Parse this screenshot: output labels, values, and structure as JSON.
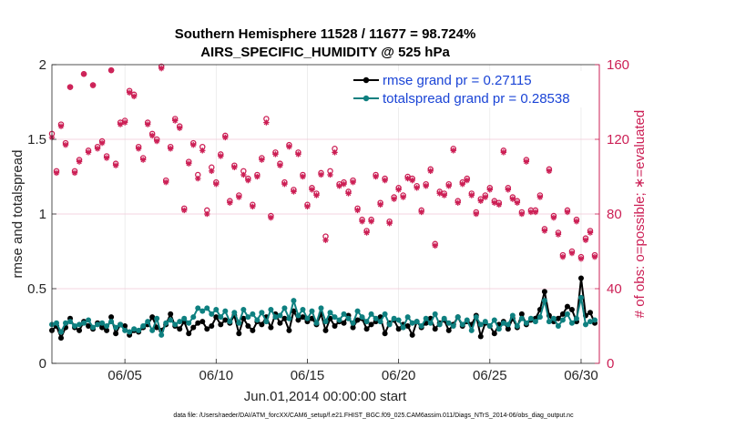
{
  "chart_data": {
    "type": "line",
    "title": "Southern Hemisphere 11528 / 11677 = 98.724%",
    "subtitle": "AIRS_SPECIFIC_HUMIDITY @ 525 hPa",
    "xlabel": "Jun.01,2014 00:00:00 start",
    "ylabel": "rmse and totalspread",
    "ylabel_right": "# of obs: o=possible; ∗=evaluated",
    "xlim": [
      1,
      31
    ],
    "ylim": [
      0,
      2
    ],
    "ylim_right": [
      0,
      160
    ],
    "x_ticks": [
      5,
      10,
      15,
      20,
      25,
      30
    ],
    "x_tick_labels": [
      "06/05",
      "06/10",
      "06/15",
      "06/20",
      "06/25",
      "06/30"
    ],
    "y_ticks": [
      0,
      0.5,
      1,
      1.5,
      2
    ],
    "y_tick_labels": [
      "0",
      "0.5",
      "1",
      "1.5",
      "2"
    ],
    "y_right_ticks": [
      0,
      40,
      80,
      120,
      160
    ],
    "y_right_tick_labels": [
      "0",
      "40",
      "80",
      "120",
      "160"
    ],
    "grid": true,
    "legend_position": "top-right",
    "legend": [
      "rmse grand pr = 0.27115",
      "totalspread grand pr = 0.28538"
    ],
    "colors": {
      "rmse": "#000000",
      "totalspread": "#0e8080",
      "obs": "#cc1f55",
      "legend_text": "#1a44d6"
    },
    "series": [
      {
        "name": "rmse",
        "x": [
          1.0,
          1.25,
          1.5,
          1.75,
          2.0,
          2.25,
          2.5,
          2.75,
          3.0,
          3.25,
          3.5,
          3.75,
          4.0,
          4.25,
          4.5,
          4.75,
          5.0,
          5.25,
          5.5,
          5.75,
          6.0,
          6.25,
          6.5,
          6.75,
          7.0,
          7.25,
          7.5,
          7.75,
          8.0,
          8.25,
          8.5,
          8.75,
          9.0,
          9.25,
          9.5,
          9.75,
          10.0,
          10.25,
          10.5,
          10.75,
          11.0,
          11.25,
          11.5,
          11.75,
          12.0,
          12.25,
          12.5,
          12.75,
          13.0,
          13.25,
          13.5,
          13.75,
          14.0,
          14.25,
          14.5,
          14.75,
          15.0,
          15.25,
          15.5,
          15.75,
          16.0,
          16.25,
          16.5,
          16.75,
          17.0,
          17.25,
          17.5,
          17.75,
          18.0,
          18.25,
          18.5,
          18.75,
          19.0,
          19.25,
          19.5,
          19.75,
          20.0,
          20.25,
          20.5,
          20.75,
          21.0,
          21.25,
          21.5,
          21.75,
          22.0,
          22.25,
          22.5,
          22.75,
          23.0,
          23.25,
          23.5,
          23.75,
          24.0,
          24.25,
          24.5,
          24.75,
          25.0,
          25.25,
          25.5,
          25.75,
          26.0,
          26.25,
          26.5,
          26.75,
          27.0,
          27.25,
          27.5,
          27.75,
          28.0,
          28.25,
          28.5,
          28.75,
          29.0,
          29.25,
          29.5,
          29.75,
          30.0,
          30.25,
          30.5,
          30.75
        ],
        "values": [
          0.22,
          0.25,
          0.17,
          0.24,
          0.3,
          0.24,
          0.22,
          0.28,
          0.25,
          0.23,
          0.27,
          0.24,
          0.22,
          0.31,
          0.2,
          0.26,
          0.25,
          0.19,
          0.22,
          0.21,
          0.24,
          0.26,
          0.31,
          0.24,
          0.22,
          0.26,
          0.33,
          0.25,
          0.23,
          0.28,
          0.2,
          0.24,
          0.27,
          0.28,
          0.23,
          0.25,
          0.31,
          0.26,
          0.29,
          0.27,
          0.32,
          0.2,
          0.3,
          0.25,
          0.22,
          0.28,
          0.26,
          0.31,
          0.24,
          0.33,
          0.27,
          0.3,
          0.22,
          0.35,
          0.29,
          0.31,
          0.28,
          0.3,
          0.26,
          0.33,
          0.22,
          0.3,
          0.25,
          0.28,
          0.27,
          0.32,
          0.24,
          0.29,
          0.3,
          0.23,
          0.26,
          0.28,
          0.31,
          0.2,
          0.27,
          0.29,
          0.23,
          0.26,
          0.25,
          0.19,
          0.28,
          0.24,
          0.27,
          0.3,
          0.23,
          0.27,
          0.29,
          0.22,
          0.26,
          0.31,
          0.25,
          0.28,
          0.26,
          0.32,
          0.18,
          0.27,
          0.25,
          0.2,
          0.26,
          0.28,
          0.23,
          0.3,
          0.24,
          0.33,
          0.26,
          0.29,
          0.3,
          0.36,
          0.48,
          0.32,
          0.28,
          0.3,
          0.33,
          0.38,
          0.36,
          0.28,
          0.57,
          0.32,
          0.34,
          0.27
        ]
      },
      {
        "name": "totalspread",
        "x": [
          1.0,
          1.25,
          1.5,
          1.75,
          2.0,
          2.25,
          2.5,
          2.75,
          3.0,
          3.25,
          3.5,
          3.75,
          4.0,
          4.25,
          4.5,
          4.75,
          5.0,
          5.25,
          5.5,
          5.75,
          6.0,
          6.25,
          6.5,
          6.75,
          7.0,
          7.25,
          7.5,
          7.75,
          8.0,
          8.25,
          8.5,
          8.75,
          9.0,
          9.25,
          9.5,
          9.75,
          10.0,
          10.25,
          10.5,
          10.75,
          11.0,
          11.25,
          11.5,
          11.75,
          12.0,
          12.25,
          12.5,
          12.75,
          13.0,
          13.25,
          13.5,
          13.75,
          14.0,
          14.25,
          14.5,
          14.75,
          15.0,
          15.25,
          15.5,
          15.75,
          16.0,
          16.25,
          16.5,
          16.75,
          17.0,
          17.25,
          17.5,
          17.75,
          18.0,
          18.25,
          18.5,
          18.75,
          19.0,
          19.25,
          19.5,
          19.75,
          20.0,
          20.25,
          20.5,
          20.75,
          21.0,
          21.25,
          21.5,
          21.75,
          22.0,
          22.25,
          22.5,
          22.75,
          23.0,
          23.25,
          23.5,
          23.75,
          24.0,
          24.25,
          24.5,
          24.75,
          25.0,
          25.25,
          25.5,
          25.75,
          26.0,
          26.25,
          26.5,
          26.75,
          27.0,
          27.25,
          27.5,
          27.75,
          28.0,
          28.25,
          28.5,
          28.75,
          29.0,
          29.25,
          29.5,
          29.75,
          30.0,
          30.25,
          30.5,
          30.75
        ],
        "values": [
          0.26,
          0.27,
          0.21,
          0.27,
          0.28,
          0.25,
          0.26,
          0.27,
          0.29,
          0.24,
          0.26,
          0.27,
          0.25,
          0.28,
          0.24,
          0.26,
          0.22,
          0.21,
          0.23,
          0.22,
          0.25,
          0.28,
          0.22,
          0.3,
          0.19,
          0.27,
          0.29,
          0.26,
          0.28,
          0.3,
          0.27,
          0.31,
          0.37,
          0.35,
          0.37,
          0.33,
          0.36,
          0.31,
          0.35,
          0.28,
          0.34,
          0.27,
          0.36,
          0.31,
          0.33,
          0.29,
          0.34,
          0.28,
          0.36,
          0.31,
          0.32,
          0.37,
          0.3,
          0.42,
          0.32,
          0.36,
          0.3,
          0.35,
          0.27,
          0.37,
          0.28,
          0.34,
          0.31,
          0.29,
          0.33,
          0.3,
          0.27,
          0.35,
          0.31,
          0.28,
          0.33,
          0.3,
          0.28,
          0.33,
          0.26,
          0.3,
          0.29,
          0.24,
          0.31,
          0.27,
          0.28,
          0.25,
          0.3,
          0.27,
          0.33,
          0.26,
          0.3,
          0.27,
          0.25,
          0.31,
          0.26,
          0.29,
          0.22,
          0.31,
          0.26,
          0.28,
          0.25,
          0.29,
          0.23,
          0.27,
          0.26,
          0.32,
          0.25,
          0.3,
          0.27,
          0.3,
          0.28,
          0.31,
          0.42,
          0.28,
          0.3,
          0.25,
          0.29,
          0.33,
          0.27,
          0.3,
          0.44,
          0.26,
          0.28,
          0.29
        ]
      },
      {
        "name": "obs_possible",
        "axis": "right",
        "marker": "o",
        "x": [
          1.0,
          1.25,
          1.5,
          1.75,
          2.0,
          2.25,
          2.5,
          2.75,
          3.0,
          3.25,
          3.5,
          3.75,
          4.0,
          4.25,
          4.5,
          4.75,
          5.0,
          5.25,
          5.5,
          5.75,
          6.0,
          6.25,
          6.5,
          6.75,
          7.0,
          7.25,
          7.5,
          7.75,
          8.0,
          8.25,
          8.5,
          8.75,
          9.0,
          9.25,
          9.5,
          9.75,
          10.0,
          10.25,
          10.5,
          10.75,
          11.0,
          11.25,
          11.5,
          11.75,
          12.0,
          12.25,
          12.5,
          12.75,
          13.0,
          13.25,
          13.5,
          13.75,
          14.0,
          14.25,
          14.5,
          14.75,
          15.0,
          15.25,
          15.5,
          15.75,
          16.0,
          16.25,
          16.5,
          16.75,
          17.0,
          17.25,
          17.5,
          17.75,
          18.0,
          18.25,
          18.5,
          18.75,
          19.0,
          19.25,
          19.5,
          19.75,
          20.0,
          20.25,
          20.5,
          20.75,
          21.0,
          21.25,
          21.5,
          21.75,
          22.0,
          22.25,
          22.5,
          22.75,
          23.0,
          23.25,
          23.5,
          23.75,
          24.0,
          24.25,
          24.5,
          24.75,
          25.0,
          25.25,
          25.5,
          25.75,
          26.0,
          26.25,
          26.5,
          26.75,
          27.0,
          27.25,
          27.5,
          27.75,
          28.0,
          28.25,
          28.5,
          28.75,
          29.0,
          29.25,
          29.5,
          29.75,
          30.0,
          30.25,
          30.5,
          30.75
        ],
        "values": [
          123,
          103,
          128,
          118,
          148,
          103,
          109,
          155,
          114,
          149,
          116,
          119,
          111,
          157,
          107,
          129,
          130,
          146,
          144,
          116,
          110,
          129,
          123,
          120,
          159,
          98,
          116,
          131,
          127,
          83,
          108,
          118,
          101,
          116,
          82,
          105,
          97,
          112,
          122,
          87,
          106,
          90,
          103,
          99,
          85,
          101,
          110,
          131,
          79,
          113,
          107,
          97,
          117,
          93,
          113,
          101,
          85,
          94,
          91,
          102,
          68,
          103,
          115,
          96,
          97,
          92,
          98,
          83,
          77,
          71,
          77,
          101,
          86,
          99,
          76,
          89,
          94,
          90,
          100,
          99,
          95,
          82,
          96,
          104,
          64,
          92,
          91,
          96,
          115,
          87,
          97,
          99,
          91,
          81,
          88,
          90,
          94,
          87,
          86,
          114,
          94,
          89,
          87,
          81,
          109,
          82,
          82,
          90,
          72,
          104,
          79,
          70,
          58,
          82,
          60,
          77,
          57,
          67,
          71,
          58
        ]
      },
      {
        "name": "obs_evaluated",
        "axis": "right",
        "marker": "*",
        "x": [
          1.0,
          1.25,
          1.5,
          1.75,
          2.0,
          2.25,
          2.5,
          2.75,
          3.0,
          3.25,
          3.5,
          3.75,
          4.0,
          4.25,
          4.5,
          4.75,
          5.0,
          5.25,
          5.5,
          5.75,
          6.0,
          6.25,
          6.5,
          6.75,
          7.0,
          7.25,
          7.5,
          7.75,
          8.0,
          8.25,
          8.5,
          8.75,
          9.0,
          9.25,
          9.5,
          9.75,
          10.0,
          10.25,
          10.5,
          10.75,
          11.0,
          11.25,
          11.5,
          11.75,
          12.0,
          12.25,
          12.5,
          12.75,
          13.0,
          13.25,
          13.5,
          13.75,
          14.0,
          14.25,
          14.5,
          14.75,
          15.0,
          15.25,
          15.5,
          15.75,
          16.0,
          16.25,
          16.5,
          16.75,
          17.0,
          17.25,
          17.5,
          17.75,
          18.0,
          18.25,
          18.5,
          18.75,
          19.0,
          19.25,
          19.5,
          19.75,
          20.0,
          20.25,
          20.5,
          20.75,
          21.0,
          21.25,
          21.5,
          21.75,
          22.0,
          22.25,
          22.5,
          22.75,
          23.0,
          23.25,
          23.5,
          23.75,
          24.0,
          24.25,
          24.5,
          24.75,
          25.0,
          25.25,
          25.5,
          25.75,
          26.0,
          26.25,
          26.5,
          26.75,
          27.0,
          27.25,
          27.5,
          27.75,
          28.0,
          28.25,
          28.5,
          28.75,
          29.0,
          29.25,
          29.5,
          29.75,
          30.0,
          30.25,
          30.5,
          30.75
        ],
        "values": [
          121,
          102,
          127,
          117,
          148,
          102,
          108,
          155,
          113,
          149,
          115,
          118,
          110,
          157,
          106,
          128,
          129,
          145,
          143,
          115,
          109,
          128,
          122,
          119,
          158,
          97,
          115,
          130,
          126,
          82,
          107,
          117,
          99,
          114,
          80,
          103,
          96,
          111,
          121,
          86,
          105,
          89,
          101,
          98,
          84,
          100,
          109,
          129,
          78,
          112,
          106,
          96,
          116,
          92,
          112,
          100,
          84,
          93,
          90,
          101,
          66,
          101,
          113,
          95,
          96,
          91,
          97,
          82,
          76,
          70,
          76,
          100,
          85,
          98,
          75,
          88,
          93,
          89,
          99,
          98,
          94,
          81,
          95,
          103,
          63,
          91,
          90,
          95,
          114,
          86,
          96,
          98,
          90,
          80,
          87,
          89,
          93,
          86,
          85,
          113,
          93,
          88,
          86,
          80,
          108,
          81,
          81,
          89,
          71,
          103,
          78,
          69,
          57,
          81,
          59,
          76,
          56,
          66,
          70,
          57
        ]
      }
    ]
  },
  "footer": {
    "text": "data file: /Users/raeder/DAI/ATM_forcXX/CAM6_setup/f.e21.FHIST_BGC.f09_025.CAM6assim.011/Diags_NTrS_2014-06/obs_diag_output.nc"
  }
}
